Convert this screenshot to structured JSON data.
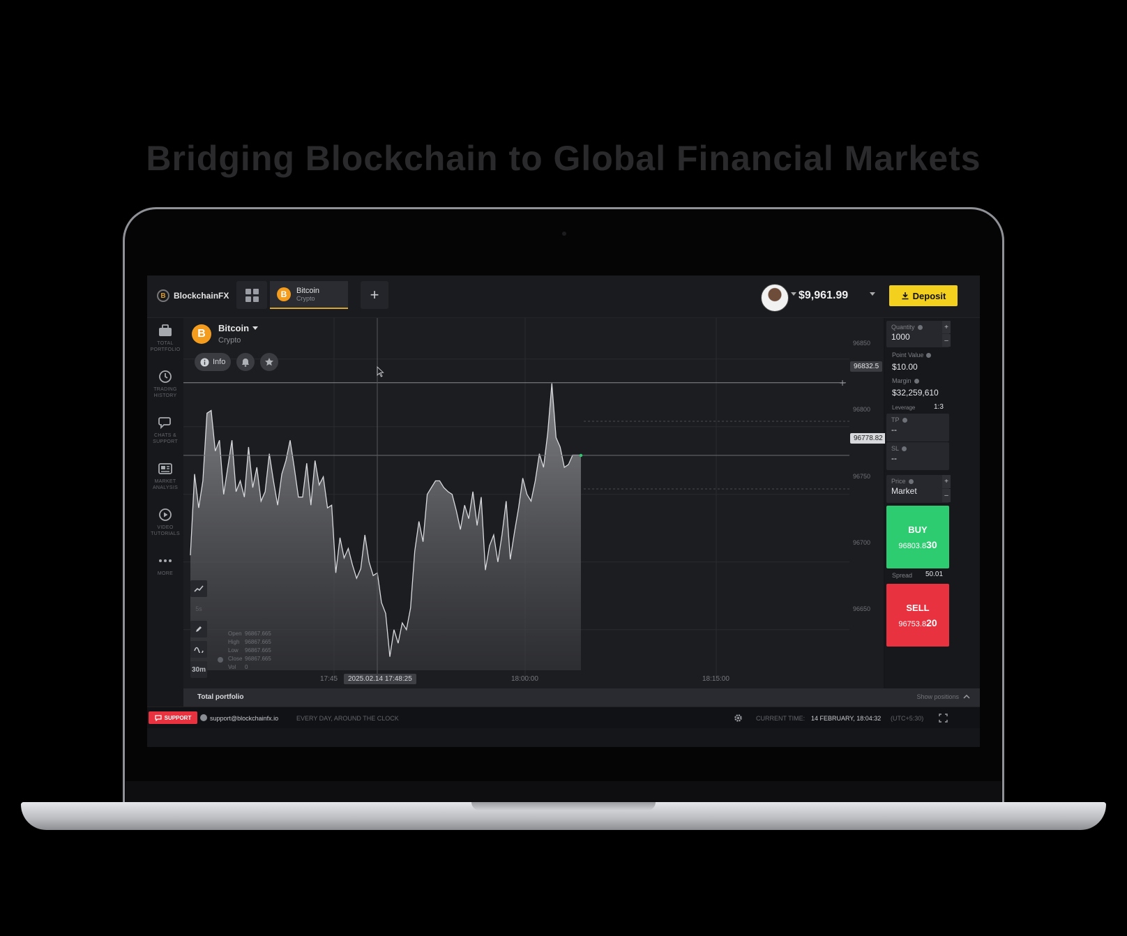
{
  "headline": "Bridging Blockchain to Global Financial Markets",
  "topbar": {
    "brand": "BlockchainFX",
    "brand_coin": "B",
    "active_tab": {
      "name": "Bitcoin",
      "sub": "Crypto",
      "coin": "B"
    },
    "add_tab": "+",
    "balance": "$9,961.99",
    "deposit_label": "Deposit"
  },
  "sidebar": {
    "items": [
      {
        "line1": "TOTAL",
        "line2": "PORTFOLIO",
        "icon": "briefcase-icon"
      },
      {
        "line1": "TRADING",
        "line2": "HISTORY",
        "icon": "clock-icon"
      },
      {
        "line1": "CHATS &",
        "line2": "SUPPORT",
        "icon": "chat-icon"
      },
      {
        "line1": "MARKET",
        "line2": "ANALYSIS",
        "icon": "newspaper-icon"
      },
      {
        "line1": "VIDEO",
        "line2": "TUTORIALS",
        "icon": "play-icon"
      },
      {
        "line1": "MORE",
        "line2": "",
        "icon": "dots-icon"
      }
    ]
  },
  "chart_header": {
    "asset": "Bitcoin",
    "asset_type": "Crypto",
    "coin": "B",
    "info_label": "Info"
  },
  "tools": {
    "interval_small": "5s",
    "interval": "30m"
  },
  "ohlc": [
    {
      "k": "Open",
      "v": "96867.665"
    },
    {
      "k": "High",
      "v": "96867.665"
    },
    {
      "k": "Low",
      "v": "96867.665"
    },
    {
      "k": "Close",
      "v": "96867.665"
    },
    {
      "k": "Vol",
      "v": "0"
    }
  ],
  "chart_data": {
    "type": "area",
    "x_ticks": [
      "17:45",
      "18:00:00",
      "18:15:00"
    ],
    "x_cursor": "2025.02.14 17:48:25",
    "y_ticks": [
      "96850",
      "96800",
      "96750",
      "96700",
      "96650"
    ],
    "ylim": [
      96620,
      96870
    ],
    "cursor_price": "96832.5",
    "current_price": "96778.82",
    "values": [
      96705,
      96765,
      96740,
      96760,
      96810,
      96812,
      96782,
      96790,
      96750,
      96770,
      96790,
      96752,
      96760,
      96748,
      96785,
      96755,
      96770,
      96745,
      96752,
      96780,
      96760,
      96742,
      96765,
      96775,
      96790,
      96770,
      96748,
      96748,
      96773,
      96742,
      96775,
      96757,
      96763,
      96740,
      96742,
      96692,
      96718,
      96703,
      96710,
      96698,
      96688,
      96695,
      96720,
      96700,
      96690,
      96692,
      96670,
      96662,
      96630,
      96650,
      96640,
      96655,
      96650,
      96666,
      96708,
      96730,
      96715,
      96750,
      96755,
      96760,
      96760,
      96755,
      96752,
      96750,
      96738,
      96724,
      96742,
      96732,
      96752,
      96727,
      96748,
      96694,
      96712,
      96720,
      96700,
      96720,
      96745,
      96702,
      96722,
      96740,
      96762,
      96750,
      96745,
      96760,
      96780,
      96770,
      96795,
      96832,
      96792,
      96785,
      96770,
      96772,
      96779,
      96779,
      96779
    ]
  },
  "order": {
    "quantity_label": "Quantity",
    "quantity": "1000",
    "point_value_label": "Point Value",
    "point_value": "$10.00",
    "margin_label": "Margin",
    "margin": "$32,259,610",
    "leverage_label": "Leverage",
    "leverage": "1:3",
    "tp_label": "TP",
    "tp": "--",
    "sl_label": "SL",
    "sl": "--",
    "price_label": "Price",
    "price": "Market",
    "buy_label": "BUY",
    "buy_price_main": "96803.8",
    "buy_price_big": "30",
    "spread_label": "Spread",
    "spread": "50.01",
    "sell_label": "SELL",
    "sell_price_main": "96753.8",
    "sell_price_big": "20"
  },
  "portfolio": {
    "title": "Total portfolio",
    "show": "Show positions"
  },
  "footer": {
    "support": "SUPPORT",
    "email": "support@blockchainfx.io",
    "hours": "EVERY DAY, AROUND THE CLOCK",
    "time_label": "CURRENT TIME:",
    "time_value": "14 FEBRUARY, 18:04:32",
    "tz": "(UTC+5:30)"
  },
  "colors": {
    "accent": "#f3cf1e",
    "buy": "#2ecc71",
    "sell": "#e8323f",
    "bitcoin": "#f39c1d"
  }
}
